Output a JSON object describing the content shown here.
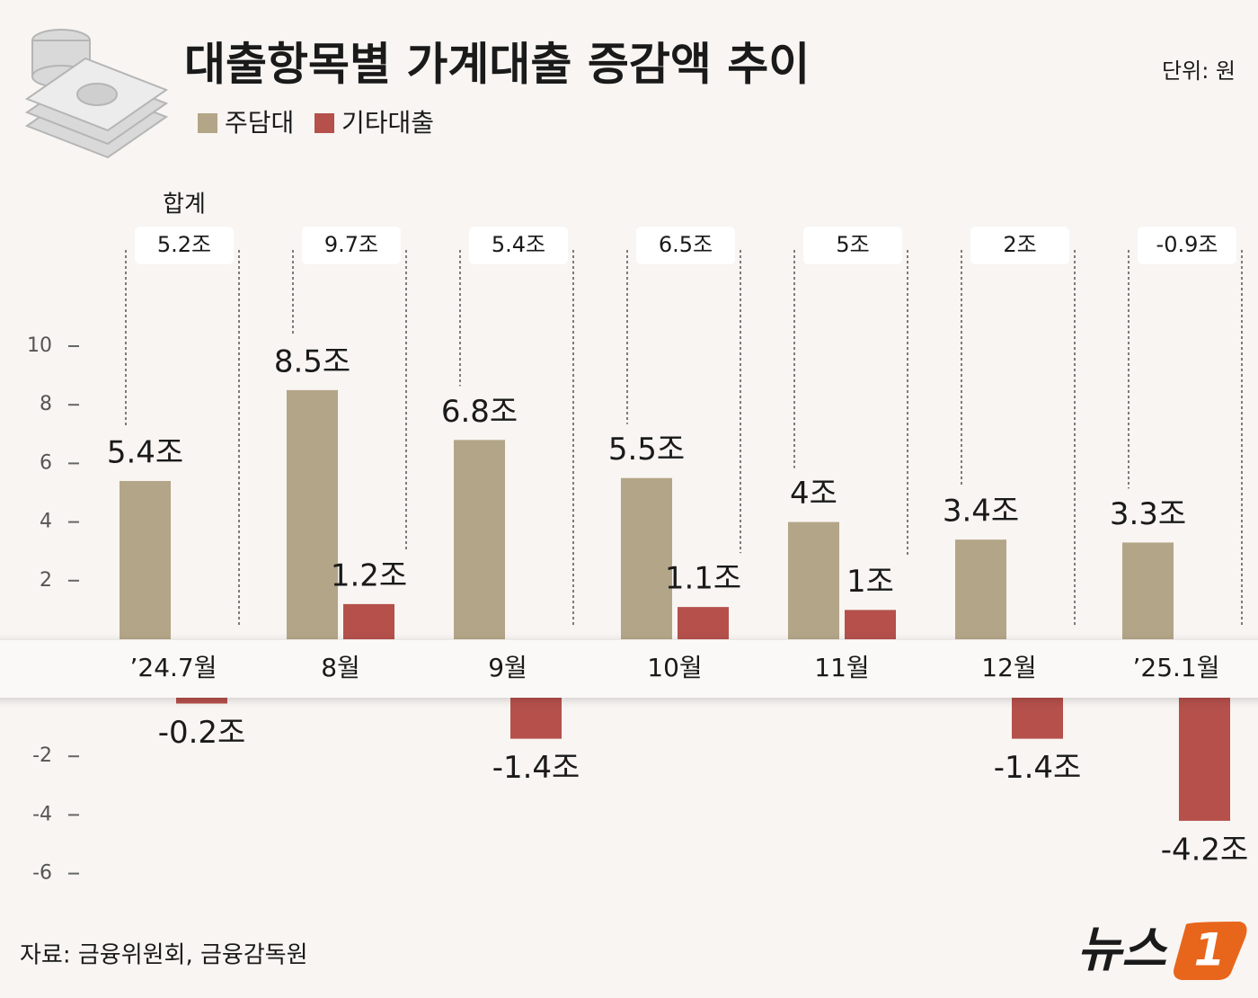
{
  "chart_data": {
    "type": "bar",
    "title": "대출항목별 가계대출 증감액 추이",
    "unit": "단위: 원",
    "source": "자료: 금융위원회, 금융감독원",
    "categories": [
      "’24.7월",
      "8월",
      "9월",
      "10월",
      "11월",
      "12월",
      "’25.1월"
    ],
    "series": [
      {
        "name": "주담대",
        "color": "#b3a587",
        "values": [
          5.4,
          8.5,
          6.8,
          5.5,
          4,
          3.4,
          3.3
        ],
        "value_labels": [
          "5.4조",
          "8.5조",
          "6.8조",
          "5.5조",
          "4조",
          "3.4조",
          "3.3조"
        ]
      },
      {
        "name": "기타대출",
        "color": "#b5504b",
        "values": [
          -0.2,
          1.2,
          -1.4,
          1.1,
          1,
          -1.4,
          -4.2
        ],
        "value_labels": [
          "-0.2조",
          "1.2조",
          "-1.4조",
          "1.1조",
          "1조",
          "-1.4조",
          "-4.2조"
        ]
      }
    ],
    "totals": {
      "name": "합계",
      "values": [
        5.2,
        9.7,
        5.4,
        6.5,
        5,
        2,
        -0.9
      ],
      "value_labels": [
        "5.2조",
        "9.7조",
        "5.4조",
        "6.5조",
        "5조",
        "2조",
        "-0.9조"
      ]
    },
    "ylim": [
      -6,
      10
    ],
    "yticks": [
      -6,
      -4,
      -2,
      2,
      4,
      6,
      8,
      10
    ]
  },
  "logo": {
    "text": "뉴스",
    "badge": "1"
  }
}
